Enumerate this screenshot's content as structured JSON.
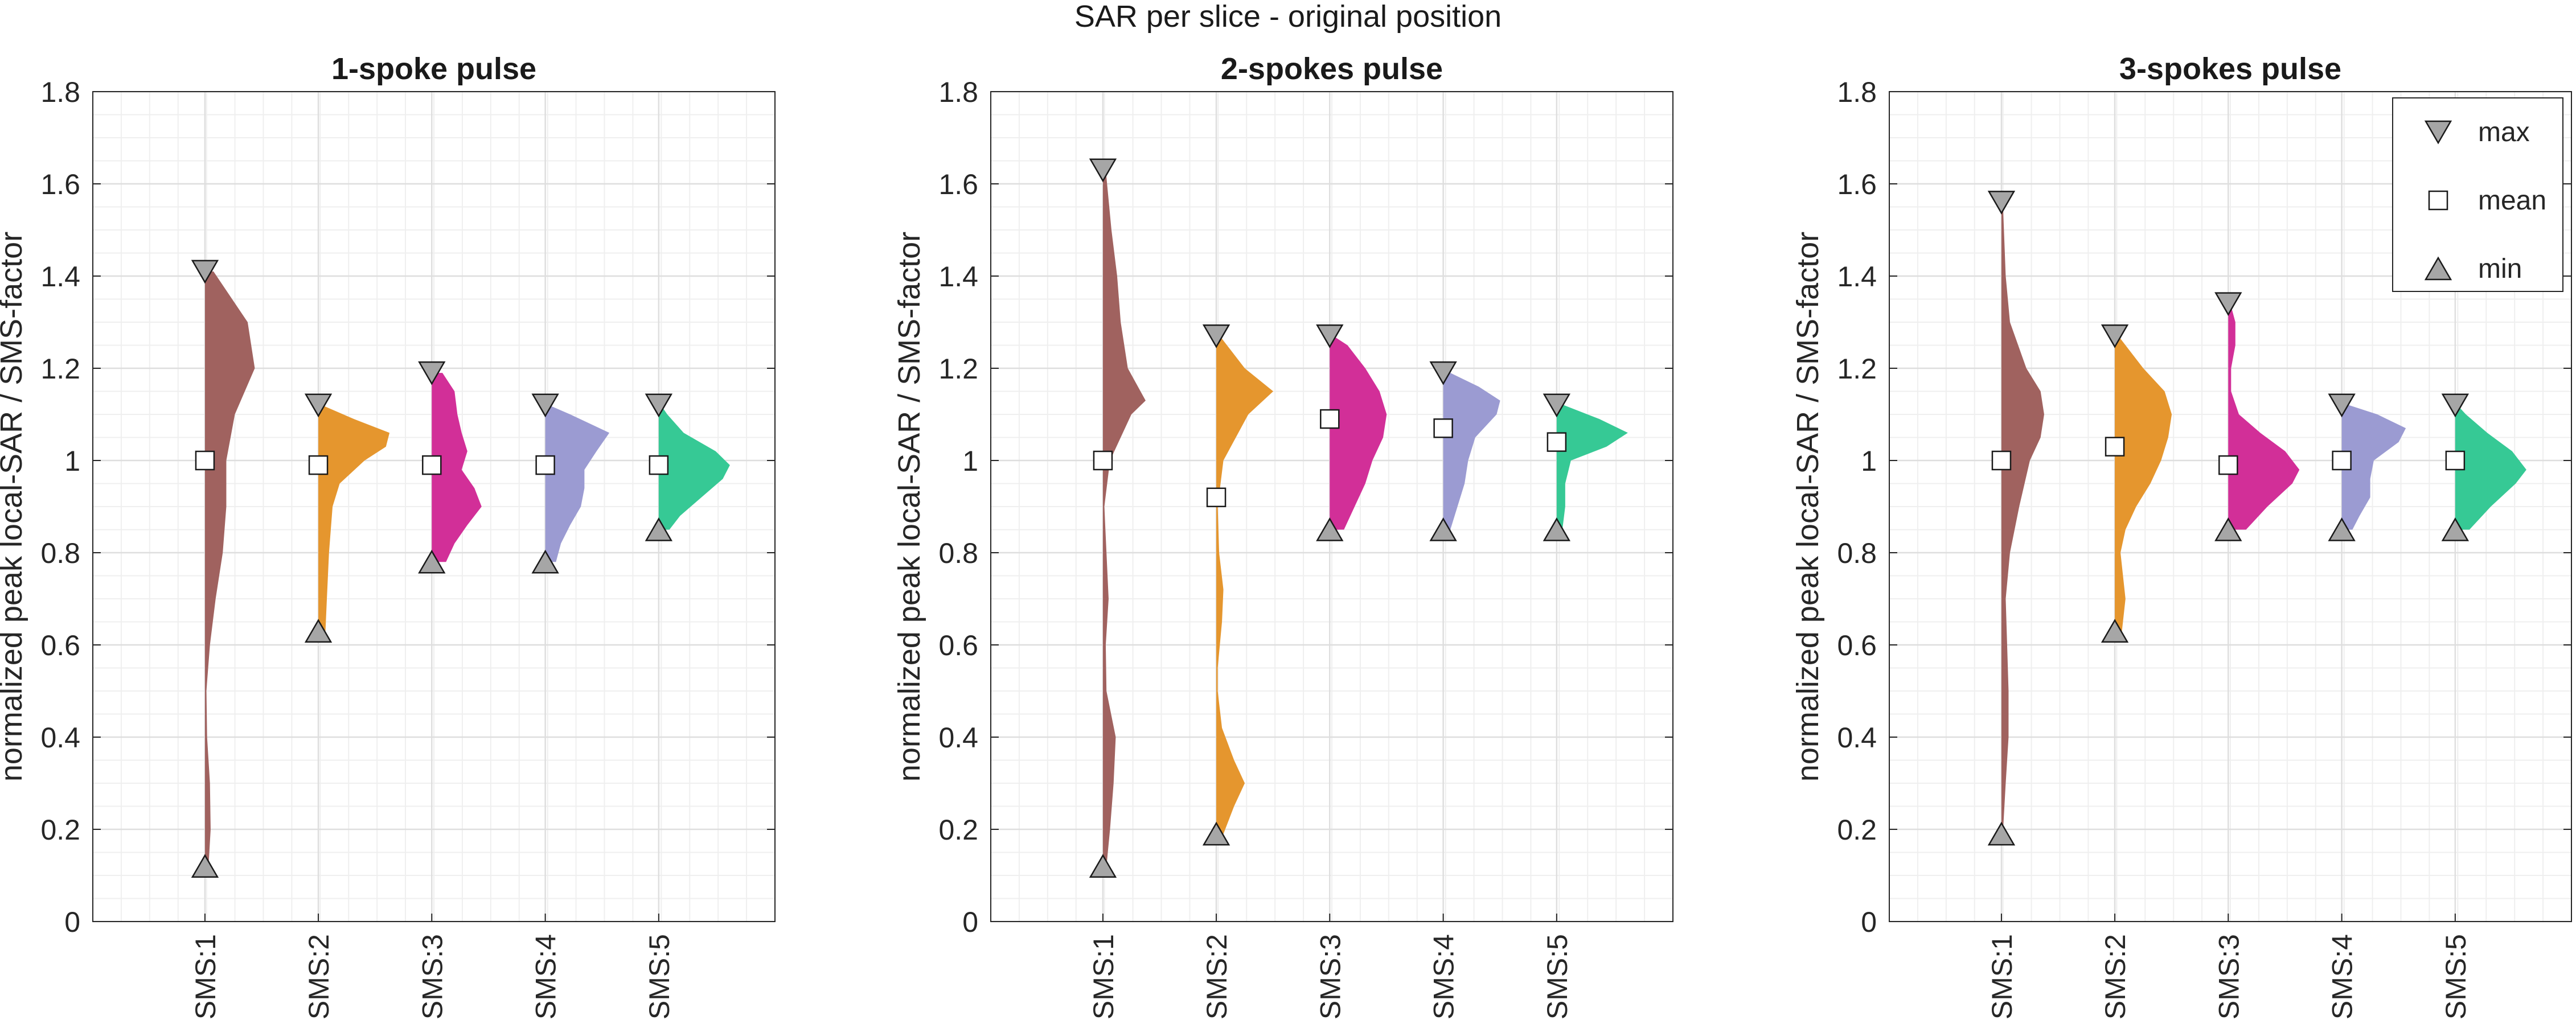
{
  "figure": {
    "suptitle": "SAR per slice - original position"
  },
  "legend": {
    "items": [
      {
        "label": "max",
        "marker": "triangle-down"
      },
      {
        "label": "mean",
        "marker": "square"
      },
      {
        "label": "min",
        "marker": "triangle-up"
      }
    ],
    "placement": "top-right of third panel"
  },
  "colors": {
    "SMS:1": "#a0625f",
    "SMS:2": "#e5962e",
    "SMS:3": "#d22f98",
    "SMS:4": "#9b9bd2",
    "SMS:5": "#36c995",
    "marker_fill_triangle": "#a6a6a6",
    "marker_fill_square": "#ffffff",
    "grid": "#e6e6e6",
    "axis": "#262626"
  },
  "chart_data": [
    {
      "type": "violin",
      "title": "1-spoke pulse",
      "ylabel": "normalized peak local-SAR / SMS-factor",
      "xlabel": "",
      "ylim": [
        0,
        1.8
      ],
      "yticks": [
        "0",
        "0.2",
        "0.4",
        "0.6",
        "0.8",
        "1",
        "1.2",
        "1.4",
        "1.6",
        "1.8"
      ],
      "categories": [
        "SMS:1",
        "SMS:2",
        "SMS:3",
        "SMS:4",
        "SMS:5"
      ],
      "max": [
        1.41,
        1.12,
        1.19,
        1.12,
        1.12
      ],
      "mean": [
        1.0,
        0.99,
        0.99,
        0.99,
        0.99
      ],
      "min": [
        0.12,
        0.63,
        0.78,
        0.78,
        0.85
      ],
      "density": [
        {
          "y": [
            0.12,
            0.2,
            0.3,
            0.4,
            0.5,
            0.6,
            0.7,
            0.8,
            0.9,
            1.0,
            1.1,
            1.2,
            1.3,
            1.41
          ],
          "w": [
            0.05,
            0.08,
            0.07,
            0.03,
            0.02,
            0.07,
            0.15,
            0.25,
            0.3,
            0.3,
            0.42,
            0.7,
            0.6,
            0.12
          ]
        },
        {
          "y": [
            0.63,
            0.7,
            0.8,
            0.9,
            0.95,
            1.0,
            1.03,
            1.06,
            1.09,
            1.12
          ],
          "w": [
            0.1,
            0.12,
            0.15,
            0.2,
            0.3,
            0.65,
            0.95,
            1.0,
            0.5,
            0.05
          ]
        },
        {
          "y": [
            0.78,
            0.82,
            0.86,
            0.9,
            0.94,
            0.98,
            1.02,
            1.06,
            1.1,
            1.15,
            1.19
          ],
          "w": [
            0.2,
            0.32,
            0.5,
            0.7,
            0.6,
            0.42,
            0.5,
            0.42,
            0.36,
            0.32,
            0.15
          ]
        },
        {
          "y": [
            0.78,
            0.82,
            0.86,
            0.9,
            0.94,
            0.98,
            1.02,
            1.06,
            1.1,
            1.12
          ],
          "w": [
            0.15,
            0.22,
            0.35,
            0.5,
            0.55,
            0.55,
            0.72,
            0.9,
            0.35,
            0.05
          ]
        },
        {
          "y": [
            0.85,
            0.88,
            0.92,
            0.96,
            0.99,
            1.02,
            1.06,
            1.1,
            1.12
          ],
          "w": [
            0.15,
            0.3,
            0.6,
            0.9,
            1.0,
            0.8,
            0.35,
            0.12,
            0.03
          ]
        }
      ]
    },
    {
      "type": "violin",
      "title": "2-spokes pulse",
      "ylabel": "normalized peak local-SAR / SMS-factor",
      "xlabel": "",
      "ylim": [
        0,
        1.8
      ],
      "yticks": [
        "0",
        "0.2",
        "0.4",
        "0.6",
        "0.8",
        "1",
        "1.2",
        "1.4",
        "1.6",
        "1.8"
      ],
      "categories": [
        "SMS:1",
        "SMS:2",
        "SMS:3",
        "SMS:4",
        "SMS:5"
      ],
      "max": [
        1.63,
        1.27,
        1.27,
        1.19,
        1.12
      ],
      "mean": [
        1.0,
        0.92,
        1.09,
        1.07,
        1.04
      ],
      "min": [
        0.12,
        0.19,
        0.85,
        0.85,
        0.85
      ],
      "density": [
        {
          "y": [
            0.12,
            0.2,
            0.3,
            0.4,
            0.5,
            0.6,
            0.7,
            0.8,
            0.9,
            1.0,
            1.1,
            1.13,
            1.2,
            1.3,
            1.4,
            1.5,
            1.63
          ],
          "w": [
            0.05,
            0.1,
            0.15,
            0.18,
            0.05,
            0.04,
            0.08,
            0.05,
            0.02,
            0.1,
            0.4,
            0.6,
            0.35,
            0.25,
            0.2,
            0.12,
            0.04
          ]
        },
        {
          "y": [
            0.19,
            0.25,
            0.3,
            0.35,
            0.42,
            0.5,
            0.55,
            0.65,
            0.72,
            0.8,
            0.9,
            1.0,
            1.1,
            1.15,
            1.2,
            1.27
          ],
          "w": [
            0.1,
            0.25,
            0.4,
            0.25,
            0.08,
            0.02,
            0.02,
            0.08,
            0.1,
            0.04,
            0.02,
            0.1,
            0.45,
            0.8,
            0.4,
            0.05
          ]
        },
        {
          "y": [
            0.85,
            0.9,
            0.95,
            1.0,
            1.05,
            1.1,
            1.15,
            1.2,
            1.25,
            1.27
          ],
          "w": [
            0.2,
            0.35,
            0.5,
            0.6,
            0.75,
            0.8,
            0.7,
            0.5,
            0.25,
            0.05
          ]
        },
        {
          "y": [
            0.85,
            0.9,
            0.95,
            1.0,
            1.05,
            1.1,
            1.13,
            1.16,
            1.19
          ],
          "w": [
            0.1,
            0.2,
            0.3,
            0.35,
            0.45,
            0.75,
            0.8,
            0.5,
            0.1
          ]
        },
        {
          "y": [
            0.85,
            0.9,
            0.95,
            1.0,
            1.03,
            1.06,
            1.09,
            1.12
          ],
          "w": [
            0.08,
            0.12,
            0.12,
            0.2,
            0.7,
            1.0,
            0.6,
            0.1
          ]
        }
      ]
    },
    {
      "type": "violin",
      "title": "3-spokes pulse",
      "ylabel": "normalized peak local-SAR / SMS-factor",
      "xlabel": "",
      "ylim": [
        0,
        1.8
      ],
      "yticks": [
        "0",
        "0.2",
        "0.4",
        "0.6",
        "0.8",
        "1",
        "1.2",
        "1.4",
        "1.6",
        "1.8"
      ],
      "categories": [
        "SMS:1",
        "SMS:2",
        "SMS:3",
        "SMS:4",
        "SMS:5"
      ],
      "max": [
        1.56,
        1.27,
        1.34,
        1.12,
        1.12
      ],
      "mean": [
        1.0,
        1.03,
        0.99,
        1.0,
        1.0
      ],
      "min": [
        0.19,
        0.63,
        0.85,
        0.85,
        0.85
      ],
      "density": [
        {
          "y": [
            0.19,
            0.3,
            0.4,
            0.5,
            0.6,
            0.7,
            0.8,
            0.9,
            1.0,
            1.05,
            1.1,
            1.15,
            1.2,
            1.3,
            1.4,
            1.56
          ],
          "w": [
            0.02,
            0.06,
            0.1,
            0.1,
            0.08,
            0.06,
            0.12,
            0.25,
            0.4,
            0.55,
            0.6,
            0.55,
            0.35,
            0.12,
            0.06,
            0.02
          ]
        },
        {
          "y": [
            0.63,
            0.7,
            0.8,
            0.85,
            0.9,
            0.95,
            1.0,
            1.05,
            1.1,
            1.15,
            1.2,
            1.27
          ],
          "w": [
            0.1,
            0.15,
            0.08,
            0.15,
            0.3,
            0.5,
            0.65,
            0.75,
            0.8,
            0.7,
            0.4,
            0.05
          ]
        },
        {
          "y": [
            0.85,
            0.9,
            0.95,
            0.98,
            1.02,
            1.06,
            1.1,
            1.15,
            1.2,
            1.25,
            1.3,
            1.34
          ],
          "w": [
            0.25,
            0.55,
            0.9,
            1.0,
            0.8,
            0.45,
            0.15,
            0.04,
            0.04,
            0.1,
            0.1,
            0.03
          ]
        },
        {
          "y": [
            0.85,
            0.88,
            0.92,
            0.96,
            1.0,
            1.04,
            1.07,
            1.1,
            1.12
          ],
          "w": [
            0.15,
            0.25,
            0.4,
            0.4,
            0.45,
            0.8,
            0.9,
            0.5,
            0.1
          ]
        },
        {
          "y": [
            0.85,
            0.9,
            0.95,
            0.98,
            1.02,
            1.06,
            1.1,
            1.12
          ],
          "w": [
            0.2,
            0.5,
            0.85,
            1.0,
            0.8,
            0.45,
            0.15,
            0.03
          ]
        }
      ]
    }
  ]
}
